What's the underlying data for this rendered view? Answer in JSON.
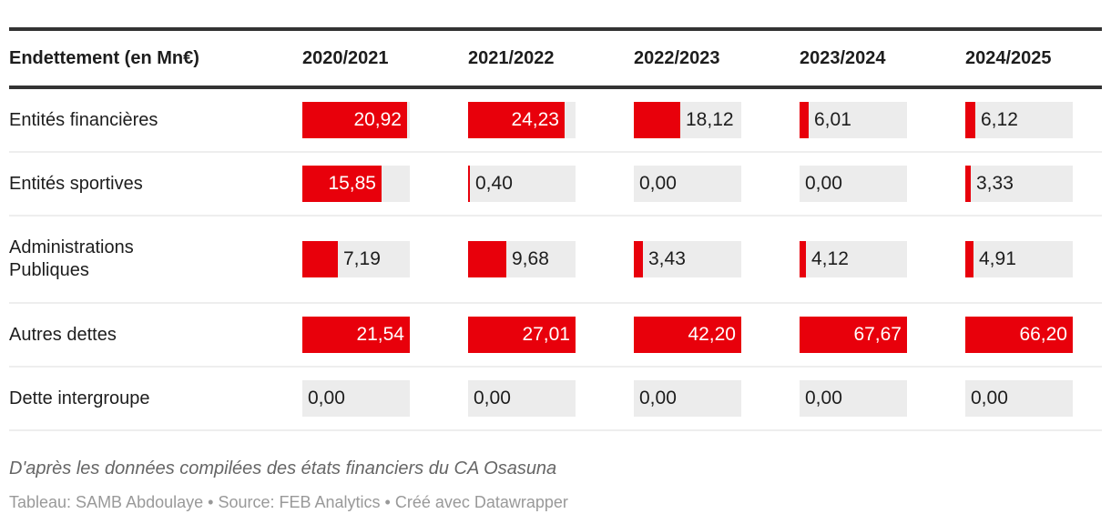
{
  "chart_data": {
    "type": "table",
    "header": "Endettement (en Mn€)",
    "columns": [
      "2020/2021",
      "2021/2022",
      "2022/2023",
      "2023/2024",
      "2024/2025"
    ],
    "rows": [
      {
        "label": "Entités financières",
        "values": [
          "20,92",
          "24,23",
          "18,12",
          "6,01",
          "6,12"
        ]
      },
      {
        "label": "Entités sportives",
        "values": [
          "15,85",
          "0,40",
          "0,00",
          "0,00",
          "3,33"
        ]
      },
      {
        "label": "Administrations Publiques",
        "values": [
          "7,19",
          "9,68",
          "3,43",
          "4,12",
          "4,91"
        ]
      },
      {
        "label": "Autres dettes",
        "values": [
          "21,54",
          "27,01",
          "42,20",
          "67,67",
          "66,20"
        ]
      },
      {
        "label": "Dette intergroupe",
        "values": [
          "0,00",
          "0,00",
          "0,00",
          "0,00",
          "0,00"
        ]
      }
    ],
    "bar_color": "#e8000b",
    "bar_scale": "per-column maximum"
  },
  "footer": {
    "note": "D'après les données compilées des états financiers du CA Osasuna",
    "credits": "Tableau: SAMB Abdoulaye • Source: FEB Analytics • Créé avec Datawrapper"
  }
}
